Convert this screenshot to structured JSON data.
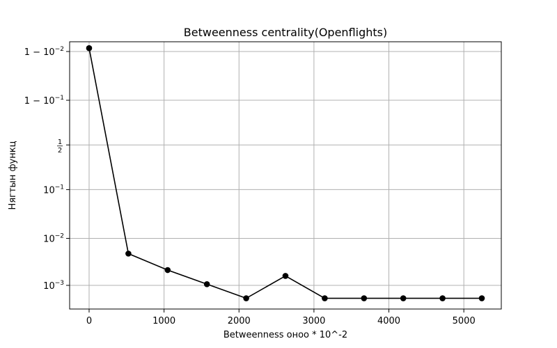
{
  "chart_data": {
    "type": "line",
    "title": "Betweenness centrality(Openflights)",
    "xlabel": "Betweenness оноо * 10^-2",
    "ylabel": "Нягтын функц",
    "x_ticks": [
      0,
      1000,
      2000,
      3000,
      4000,
      5000
    ],
    "y_scale": "logit",
    "y_ticks": [
      0.99,
      0.9,
      0.5,
      0.1,
      0.01,
      0.001
    ],
    "y_tick_labels": [
      {
        "base": "1 − 10",
        "exp": "−2"
      },
      {
        "base": "1 − 10",
        "exp": "−1"
      },
      {
        "frac_num": "1",
        "frac_den": "2"
      },
      {
        "base": "10",
        "exp": "−1"
      },
      {
        "base": "10",
        "exp": "−2"
      },
      {
        "base": "10",
        "exp": "−3"
      }
    ],
    "xlim": [
      -260,
      5500
    ],
    "grid": true,
    "color": "#000000",
    "marker": "circle",
    "x": [
      0,
      524,
      1048,
      1572,
      2096,
      2620,
      3144,
      3668,
      4192,
      4716,
      5240
    ],
    "y": [
      0.9915,
      0.00475,
      0.00212,
      0.00106,
      0.00053,
      0.00159,
      0.00053,
      0.00053,
      0.00053,
      0.00053,
      0.00053
    ]
  }
}
